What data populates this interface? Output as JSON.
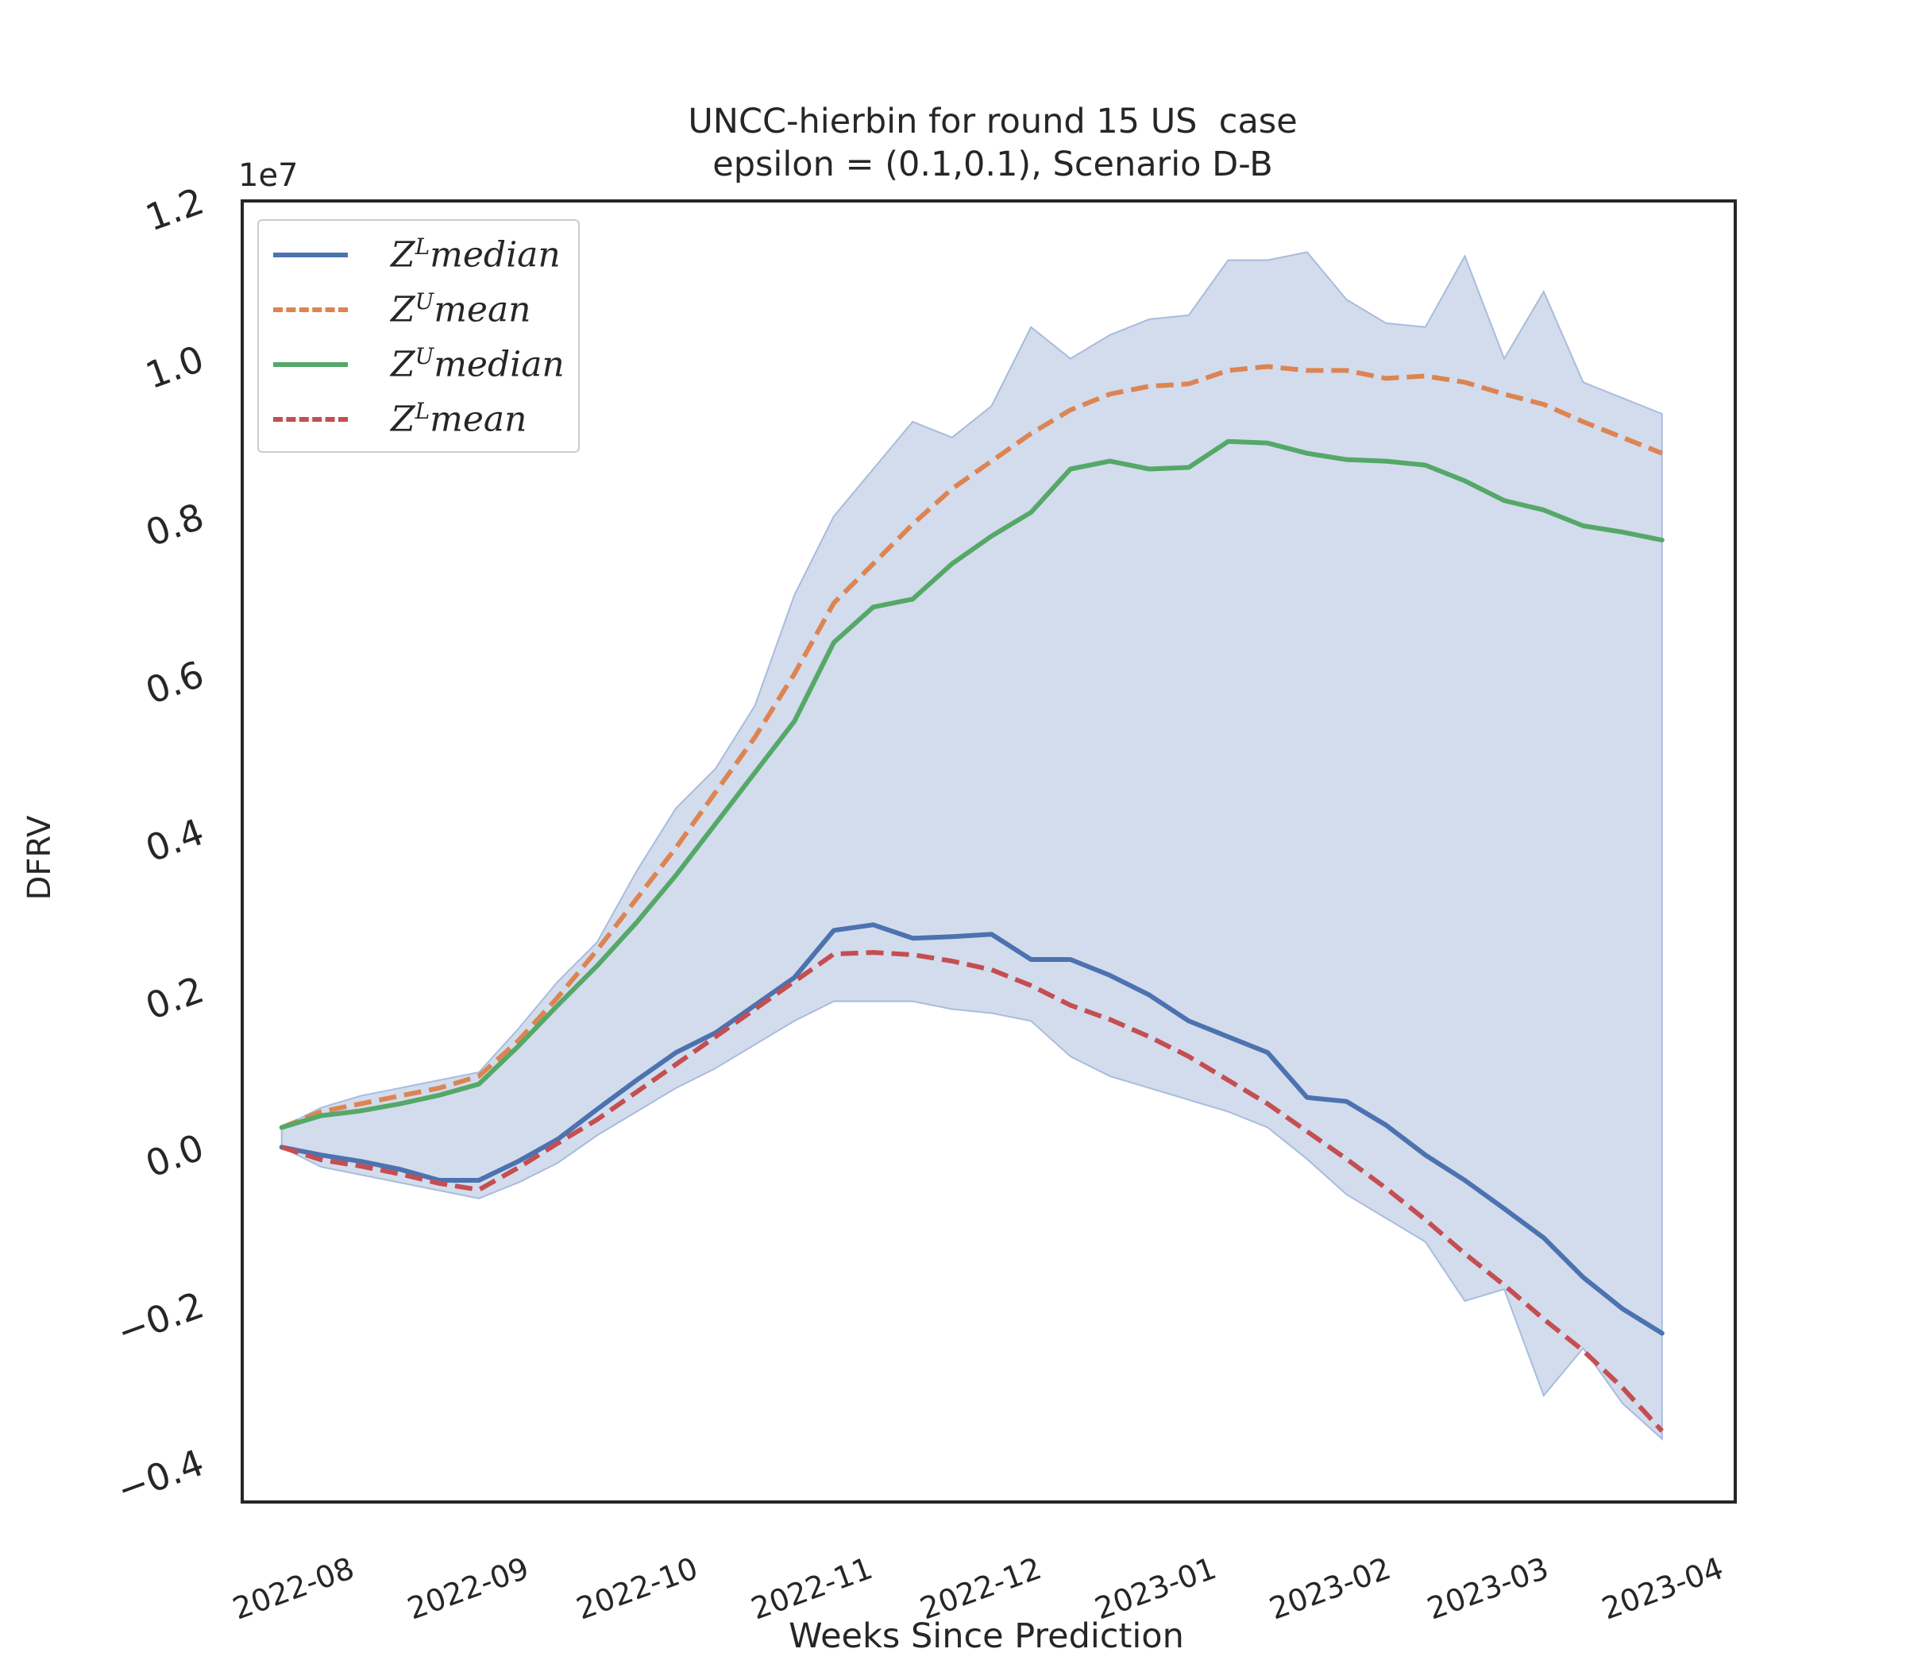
{
  "chart_data": {
    "type": "line",
    "title_line1": "UNCC-hierbin for round 15 US  case",
    "title_line2": "epsilon = (0.1,0.1), Scenario D-B",
    "xlabel": "Weeks Since Prediction",
    "ylabel": "DFRV",
    "y_scale_label": "1e7",
    "ylim": [
      -0.45,
      1.2
    ],
    "y_ticks": [
      -0.4,
      -0.2,
      0.0,
      0.2,
      0.4,
      0.6,
      0.8,
      1.0,
      1.2
    ],
    "y_tick_labels": [
      "−0.4",
      "−0.2",
      "0.0",
      "0.2",
      "0.4",
      "0.6",
      "0.8",
      "1.0",
      "1.2"
    ],
    "x_range": [
      "2022-07-16",
      "2023-04-07"
    ],
    "x_ticks": [
      "2022-08-01",
      "2022-09-01",
      "2022-10-01",
      "2022-11-01",
      "2022-12-01",
      "2023-01-01",
      "2023-02-01",
      "2023-03-01",
      "2023-04-01"
    ],
    "x_tick_labels": [
      "2022-08",
      "2022-09",
      "2022-10",
      "2022-11",
      "2022-12",
      "2023-01",
      "2023-02",
      "2023-03",
      "2023-04"
    ],
    "grid": false,
    "legend_position": "top-left",
    "x": [
      "2022-07-23",
      "2022-07-30",
      "2022-08-06",
      "2022-08-13",
      "2022-08-20",
      "2022-08-27",
      "2022-09-03",
      "2022-09-10",
      "2022-09-17",
      "2022-09-24",
      "2022-10-01",
      "2022-10-08",
      "2022-10-15",
      "2022-10-22",
      "2022-10-29",
      "2022-11-05",
      "2022-11-12",
      "2022-11-19",
      "2022-11-26",
      "2022-12-03",
      "2022-12-10",
      "2022-12-17",
      "2022-12-24",
      "2022-12-31",
      "2023-01-07",
      "2023-01-14",
      "2023-01-21",
      "2023-01-28",
      "2023-02-04",
      "2023-02-11",
      "2023-02-18",
      "2023-02-25",
      "2023-03-04",
      "2023-03-11",
      "2023-03-18",
      "2023-03-25"
    ],
    "band": {
      "color": "#c3d0e6",
      "upper": [
        0.025,
        0.05,
        0.065,
        0.075,
        0.085,
        0.095,
        0.15,
        0.21,
        0.26,
        0.35,
        0.43,
        0.48,
        0.56,
        0.7,
        0.8,
        0.86,
        0.92,
        0.9,
        0.94,
        1.04,
        1.0,
        1.03,
        1.05,
        1.055,
        1.125,
        1.125,
        1.135,
        1.075,
        1.045,
        1.04,
        1.13,
        1.0,
        1.085,
        0.97,
        0.95,
        0.93
      ],
      "lower": [
        0.0,
        -0.025,
        -0.035,
        -0.045,
        -0.055,
        -0.065,
        -0.045,
        -0.02,
        0.015,
        0.045,
        0.075,
        0.1,
        0.13,
        0.16,
        0.185,
        0.185,
        0.185,
        0.175,
        0.17,
        0.16,
        0.115,
        0.09,
        0.075,
        0.06,
        0.045,
        0.025,
        -0.015,
        -0.06,
        -0.09,
        -0.12,
        -0.195,
        -0.18,
        -0.315,
        -0.255,
        -0.325,
        -0.37
      ]
    },
    "series": [
      {
        "name": "median",
        "sup": "L",
        "base": "Z",
        "color": "#4c72b0",
        "dash": "solid",
        "values": [
          0.0,
          -0.01,
          -0.018,
          -0.028,
          -0.042,
          -0.042,
          -0.018,
          0.01,
          0.048,
          0.085,
          0.12,
          0.145,
          0.18,
          0.215,
          0.275,
          0.282,
          0.265,
          0.267,
          0.27,
          0.238,
          0.238,
          0.218,
          0.193,
          0.16,
          0.14,
          0.12,
          0.063,
          0.058,
          0.028,
          -0.01,
          -0.042,
          -0.078,
          -0.115,
          -0.165,
          -0.205,
          -0.236
        ]
      },
      {
        "name": "mean",
        "sup": "U",
        "base": "Z",
        "color": "#dd8452",
        "dash": "dashed",
        "values": [
          0.025,
          0.045,
          0.055,
          0.065,
          0.075,
          0.09,
          0.135,
          0.19,
          0.25,
          0.315,
          0.38,
          0.45,
          0.52,
          0.6,
          0.69,
          0.74,
          0.79,
          0.835,
          0.87,
          0.905,
          0.935,
          0.955,
          0.965,
          0.968,
          0.985,
          0.99,
          0.985,
          0.985,
          0.975,
          0.978,
          0.97,
          0.955,
          0.942,
          0.92,
          0.9,
          0.88
        ]
      },
      {
        "name": "median",
        "sup": "U",
        "base": "Z",
        "color": "#55a868",
        "dash": "solid",
        "values": [
          0.025,
          0.04,
          0.046,
          0.055,
          0.066,
          0.08,
          0.128,
          0.18,
          0.23,
          0.285,
          0.345,
          0.41,
          0.475,
          0.54,
          0.64,
          0.685,
          0.695,
          0.74,
          0.775,
          0.805,
          0.86,
          0.87,
          0.86,
          0.862,
          0.895,
          0.893,
          0.88,
          0.872,
          0.87,
          0.865,
          0.845,
          0.82,
          0.808,
          0.788,
          0.78,
          0.77
        ]
      },
      {
        "name": "mean",
        "sup": "L",
        "base": "Z",
        "color": "#c44e52",
        "dash": "dashed",
        "values": [
          0.0,
          -0.016,
          -0.024,
          -0.034,
          -0.046,
          -0.054,
          -0.026,
          0.005,
          0.035,
          0.07,
          0.105,
          0.14,
          0.175,
          0.21,
          0.245,
          0.247,
          0.244,
          0.236,
          0.225,
          0.205,
          0.18,
          0.162,
          0.14,
          0.115,
          0.085,
          0.055,
          0.02,
          -0.015,
          -0.052,
          -0.092,
          -0.135,
          -0.175,
          -0.218,
          -0.258,
          -0.305,
          -0.36
        ]
      }
    ]
  }
}
